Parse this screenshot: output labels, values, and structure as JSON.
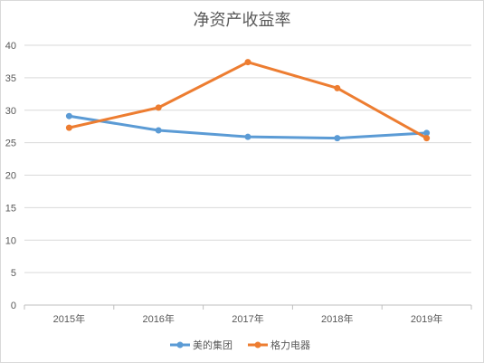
{
  "chart_data": {
    "type": "line",
    "title": "净资产收益率",
    "categories": [
      "2015年",
      "2016年",
      "2017年",
      "2018年",
      "2019年"
    ],
    "series": [
      {
        "name": "美的集团",
        "color": "#5B9BD5",
        "values": [
          29.1,
          26.9,
          25.9,
          25.7,
          26.5
        ]
      },
      {
        "name": "格力电器",
        "color": "#ED7D31",
        "values": [
          27.3,
          30.4,
          37.4,
          33.4,
          25.7
        ]
      }
    ],
    "ylim": [
      0,
      40
    ],
    "yticks": [
      0,
      5,
      10,
      15,
      20,
      25,
      30,
      35,
      40
    ],
    "grid": true,
    "legend": "bottom"
  }
}
